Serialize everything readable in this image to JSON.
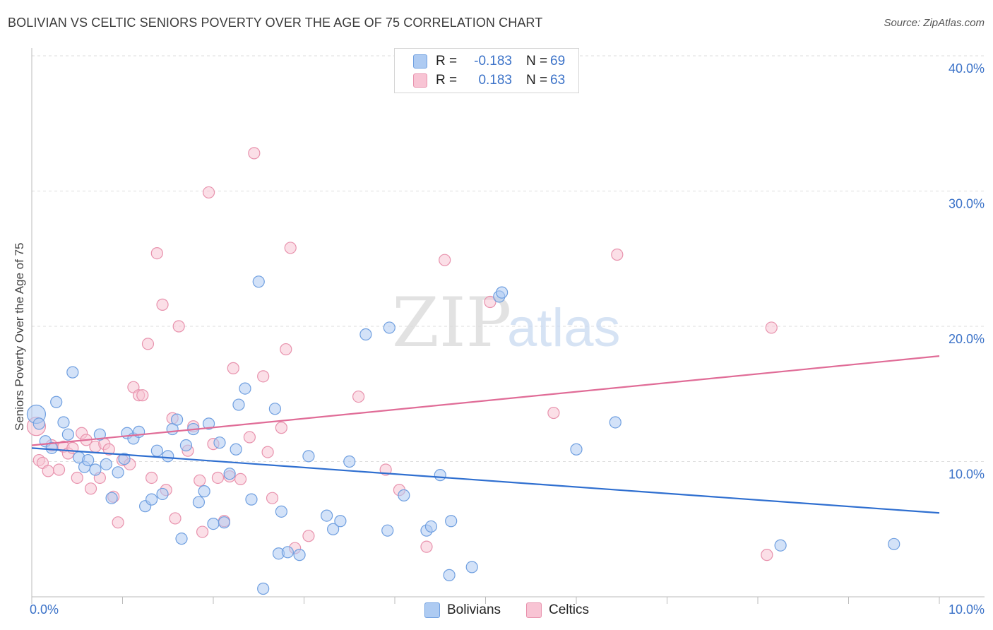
{
  "header": {
    "title": "BOLIVIAN VS CELTIC SENIORS POVERTY OVER THE AGE OF 75 CORRELATION CHART",
    "source": "Source: ZipAtlas.com"
  },
  "watermark": {
    "zip": "ZIP",
    "atlas": "atlas"
  },
  "legend": {
    "r_label": "R =",
    "n_label": "N =",
    "series": [
      {
        "name": "Bolivians",
        "r": "-0.183",
        "n": "69",
        "fill": "#aecbf2",
        "stroke": "#6f9fe0"
      },
      {
        "name": "Celtics",
        "r": "0.183",
        "n": "63",
        "fill": "#f8c4d4",
        "stroke": "#e892ad"
      }
    ]
  },
  "colors": {
    "blue_line": "#2f6fd0",
    "pink_line": "#e06c97",
    "grid": "#dddddd",
    "tick_label": "#3b72c8"
  },
  "chart_data": {
    "type": "scatter",
    "title": "BOLIVIAN VS CELTIC SENIORS POVERTY OVER THE AGE OF 75 CORRELATION CHART",
    "xlabel": "",
    "ylabel": "Seniors Poverty Over the Age of 75",
    "xlim": [
      0,
      10
    ],
    "ylim": [
      0,
      40
    ],
    "x_tick_labels": [
      {
        "value": 0,
        "label": "0.0%"
      },
      {
        "value": 10,
        "label": "10.0%"
      }
    ],
    "y_tick_labels": [
      {
        "value": 10,
        "label": "10.0%"
      },
      {
        "value": 20,
        "label": "20.0%"
      },
      {
        "value": 30,
        "label": "30.0%"
      },
      {
        "value": 40,
        "label": "40.0%"
      }
    ],
    "grid": true,
    "legend_position": "top-center",
    "series": [
      {
        "name": "Bolivians",
        "trend": [
          [
            0,
            11.0
          ],
          [
            10,
            6.2
          ]
        ],
        "points": [
          [
            0.05,
            13.5
          ],
          [
            0.08,
            12.8
          ],
          [
            0.15,
            11.5
          ],
          [
            0.22,
            11.0
          ],
          [
            0.27,
            14.4
          ],
          [
            0.35,
            12.9
          ],
          [
            0.4,
            12.0
          ],
          [
            0.45,
            16.6
          ],
          [
            0.52,
            10.3
          ],
          [
            0.58,
            9.6
          ],
          [
            0.62,
            10.1
          ],
          [
            0.7,
            9.4
          ],
          [
            0.75,
            12.0
          ],
          [
            0.82,
            9.8
          ],
          [
            0.88,
            7.3
          ],
          [
            0.95,
            9.2
          ],
          [
            1.02,
            10.2
          ],
          [
            1.05,
            12.1
          ],
          [
            1.12,
            11.7
          ],
          [
            1.18,
            12.2
          ],
          [
            1.25,
            6.7
          ],
          [
            1.32,
            7.2
          ],
          [
            1.38,
            10.8
          ],
          [
            1.44,
            7.6
          ],
          [
            1.5,
            10.4
          ],
          [
            1.55,
            12.4
          ],
          [
            1.6,
            13.1
          ],
          [
            1.65,
            4.3
          ],
          [
            1.7,
            11.2
          ],
          [
            1.78,
            12.4
          ],
          [
            1.84,
            7.0
          ],
          [
            1.9,
            7.8
          ],
          [
            1.95,
            12.8
          ],
          [
            2.0,
            5.4
          ],
          [
            2.07,
            11.4
          ],
          [
            2.12,
            5.5
          ],
          [
            2.18,
            9.1
          ],
          [
            2.25,
            10.9
          ],
          [
            2.28,
            14.2
          ],
          [
            2.35,
            15.4
          ],
          [
            2.42,
            7.2
          ],
          [
            2.5,
            23.3
          ],
          [
            2.55,
            0.6
          ],
          [
            2.68,
            13.9
          ],
          [
            2.72,
            3.2
          ],
          [
            2.75,
            6.3
          ],
          [
            2.82,
            3.3
          ],
          [
            2.95,
            3.1
          ],
          [
            3.05,
            10.4
          ],
          [
            3.25,
            6.0
          ],
          [
            3.32,
            5.0
          ],
          [
            3.4,
            5.6
          ],
          [
            3.5,
            10.0
          ],
          [
            3.68,
            19.4
          ],
          [
            3.92,
            4.9
          ],
          [
            3.94,
            19.9
          ],
          [
            4.1,
            7.5
          ],
          [
            4.35,
            4.9
          ],
          [
            4.4,
            5.2
          ],
          [
            4.5,
            9.0
          ],
          [
            4.6,
            1.6
          ],
          [
            4.62,
            5.6
          ],
          [
            4.85,
            2.2
          ],
          [
            5.15,
            22.2
          ],
          [
            5.18,
            22.5
          ],
          [
            6.0,
            10.9
          ],
          [
            6.43,
            12.9
          ],
          [
            8.25,
            3.8
          ],
          [
            9.5,
            3.9
          ]
        ]
      },
      {
        "name": "Celtics",
        "trend": [
          [
            0,
            11.2
          ],
          [
            10,
            17.8
          ]
        ],
        "points": [
          [
            0.05,
            12.6
          ],
          [
            0.08,
            10.1
          ],
          [
            0.12,
            9.9
          ],
          [
            0.18,
            9.3
          ],
          [
            0.22,
            11.2
          ],
          [
            0.3,
            9.4
          ],
          [
            0.35,
            11.1
          ],
          [
            0.4,
            10.6
          ],
          [
            0.45,
            11.0
          ],
          [
            0.5,
            8.8
          ],
          [
            0.55,
            12.1
          ],
          [
            0.6,
            11.6
          ],
          [
            0.65,
            8.0
          ],
          [
            0.7,
            11.1
          ],
          [
            0.75,
            8.8
          ],
          [
            0.8,
            11.3
          ],
          [
            0.85,
            10.9
          ],
          [
            0.9,
            7.4
          ],
          [
            0.95,
            5.5
          ],
          [
            1.0,
            10.1
          ],
          [
            1.08,
            9.8
          ],
          [
            1.12,
            15.5
          ],
          [
            1.18,
            14.9
          ],
          [
            1.22,
            14.9
          ],
          [
            1.28,
            18.7
          ],
          [
            1.32,
            8.8
          ],
          [
            1.38,
            25.4
          ],
          [
            1.44,
            21.6
          ],
          [
            1.48,
            7.9
          ],
          [
            1.55,
            13.2
          ],
          [
            1.58,
            5.8
          ],
          [
            1.62,
            20.0
          ],
          [
            1.72,
            10.8
          ],
          [
            1.78,
            12.6
          ],
          [
            1.85,
            8.6
          ],
          [
            1.88,
            4.8
          ],
          [
            1.95,
            29.9
          ],
          [
            2.0,
            11.3
          ],
          [
            2.05,
            8.8
          ],
          [
            2.12,
            5.6
          ],
          [
            2.18,
            8.9
          ],
          [
            2.22,
            16.9
          ],
          [
            2.3,
            8.7
          ],
          [
            2.4,
            11.8
          ],
          [
            2.45,
            32.8
          ],
          [
            2.55,
            16.3
          ],
          [
            2.6,
            10.7
          ],
          [
            2.65,
            7.3
          ],
          [
            2.75,
            12.5
          ],
          [
            2.8,
            18.3
          ],
          [
            2.85,
            25.8
          ],
          [
            2.9,
            3.6
          ],
          [
            3.05,
            4.5
          ],
          [
            3.6,
            14.8
          ],
          [
            3.9,
            9.4
          ],
          [
            4.05,
            7.9
          ],
          [
            4.35,
            3.7
          ],
          [
            4.55,
            24.9
          ],
          [
            5.05,
            21.8
          ],
          [
            5.75,
            13.6
          ],
          [
            6.45,
            25.3
          ],
          [
            8.15,
            19.9
          ],
          [
            8.1,
            3.1
          ]
        ]
      }
    ]
  }
}
